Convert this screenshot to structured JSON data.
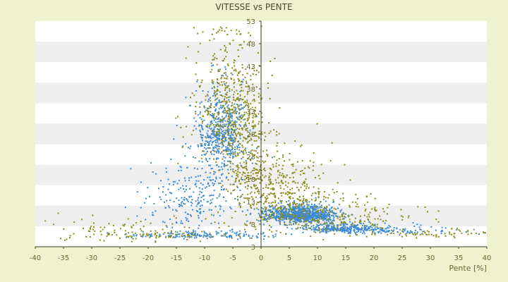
{
  "chart_data": {
    "type": "scatter",
    "title": "VITESSE vs PENTE",
    "xlabel": "Pente [%]",
    "ylabel": "",
    "xlim": [
      -40,
      40
    ],
    "ylim": [
      3,
      53
    ],
    "x_ticks": [
      "-40",
      "-35",
      "-30",
      "-25",
      "-20",
      "-15",
      "-10",
      "-5",
      "0",
      "5",
      "10",
      "15",
      "20",
      "25",
      "30",
      "35",
      "40"
    ],
    "y_ticks": [
      "3",
      "8",
      "13",
      "18",
      "23",
      "28",
      "33",
      "38",
      "43",
      "48",
      "53"
    ],
    "grid": true,
    "legend": "none",
    "colors": {
      "background": "#eef2cf",
      "band_light": "#ffffff",
      "band_dark": "#efefef",
      "axis": "#3d3d1c",
      "series_a": "#3a8ad6",
      "series_b": "#8c8c1a"
    },
    "series": [
      {
        "color": "#3a8ad6",
        "clusters": [
          {
            "cx": -7,
            "cy": 28,
            "sx": 2.2,
            "sy": 5.5,
            "n": 520
          },
          {
            "cx": -12,
            "cy": 14,
            "sx": 4.5,
            "sy": 5.5,
            "n": 260
          },
          {
            "cx": 7,
            "cy": 10,
            "sx": 3.2,
            "sy": 1.2,
            "n": 900
          },
          {
            "cx": 14,
            "cy": 7,
            "sx": 3.8,
            "sy": 0.7,
            "n": 300
          },
          {
            "cx": 24,
            "cy": 6.5,
            "sx": 7,
            "sy": 0.6,
            "n": 90
          },
          {
            "cx": -10,
            "cy": 5.5,
            "sx": 6,
            "sy": 0.6,
            "n": 160
          }
        ]
      },
      {
        "color": "#8c8c1a",
        "clusters": [
          {
            "cx": -5.5,
            "cy": 34,
            "sx": 2.8,
            "sy": 9,
            "n": 480
          },
          {
            "cx": -2,
            "cy": 21,
            "sx": 2.5,
            "sy": 8,
            "n": 220
          },
          {
            "cx": 4,
            "cy": 15,
            "sx": 4,
            "sy": 5,
            "n": 330
          },
          {
            "cx": 12,
            "cy": 9.5,
            "sx": 7,
            "sy": 3,
            "n": 260
          },
          {
            "cx": -20,
            "cy": 6,
            "sx": 9,
            "sy": 1.5,
            "n": 140
          },
          {
            "cx": 30,
            "cy": 6,
            "sx": 6,
            "sy": 0.8,
            "n": 60
          }
        ]
      }
    ]
  }
}
